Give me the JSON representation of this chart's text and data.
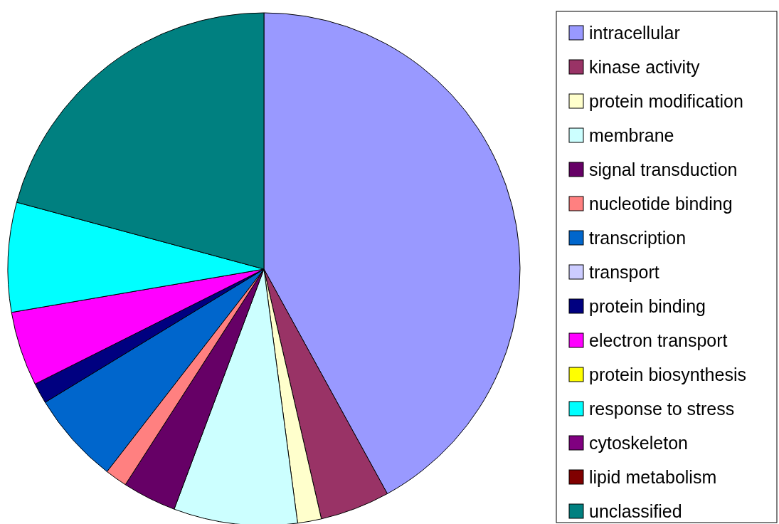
{
  "chart_data": {
    "type": "pie",
    "categories": [
      "intracellular",
      "kinase activity",
      "protein modification",
      "membrane",
      "signal transduction",
      "nucleotide binding",
      "transcription",
      "transport",
      "protein binding",
      "electron transport",
      "protein biosynthesis",
      "response to stress",
      "cytoskeleton",
      "lipid metabolism",
      "unclassified"
    ],
    "values": [
      42.0,
      4.4,
      1.5,
      7.8,
      3.4,
      1.4,
      5.8,
      0,
      1.3,
      4.7,
      0,
      6.9,
      0,
      0,
      20.8
    ],
    "colors": [
      "#9999ff",
      "#993366",
      "#ffffcc",
      "#ccffff",
      "#660066",
      "#ff8080",
      "#0066cc",
      "#ccccff",
      "#000080",
      "#ff00ff",
      "#ffff00",
      "#00ffff",
      "#800080",
      "#800000",
      "#008080"
    ],
    "legend": "right"
  }
}
